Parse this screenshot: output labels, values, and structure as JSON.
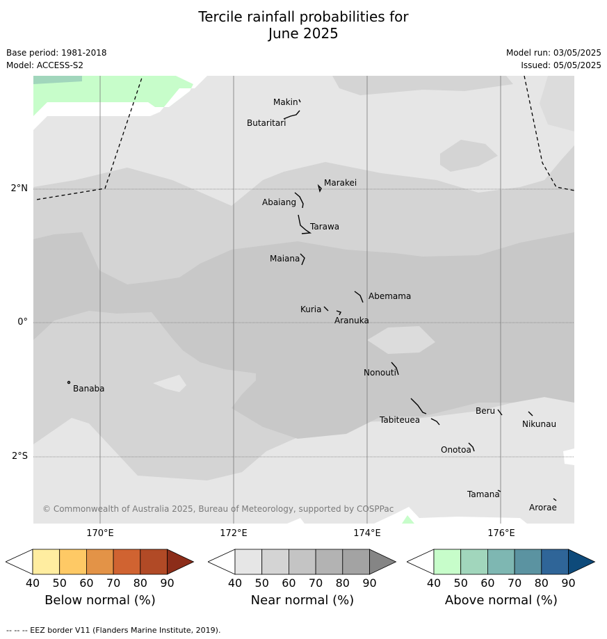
{
  "title_line1": "Tercile rainfall probabilities for",
  "title_line2": "June 2025",
  "meta_left": {
    "base_period": "Base period: 1981-2018",
    "model": "Model: ACCESS-S2"
  },
  "meta_right": {
    "model_run": "Model run: 03/05/2025",
    "issued": "Issued: 05/05/2025"
  },
  "lat_labels": [
    "2°N",
    "0°",
    "2°S"
  ],
  "lon_labels": [
    "170°E",
    "172°E",
    "174°E",
    "176°E"
  ],
  "places": [
    "Makin",
    "Butaritari",
    "Marakei",
    "Abaiang",
    "Tarawa",
    "Maiana",
    "Abemama",
    "Kuria",
    "Aranuka",
    "Nonouti",
    "Banaba",
    "Beru",
    "Tabiteuea",
    "Nikunau",
    "Onotoa",
    "Tamana",
    "Arorae"
  ],
  "copyright": "© Commonwealth of Australia 2025, Bureau of Meteorology, supported by COSPPac",
  "colorbars": [
    {
      "label": "Below normal (%)",
      "ticks": [
        "40",
        "50",
        "60",
        "70",
        "80",
        "90"
      ],
      "colors": [
        "#ffffff",
        "#ffeda0",
        "#fec965",
        "#e39347",
        "#d06331",
        "#b14a26",
        "#8c2d19"
      ]
    },
    {
      "label": "Near normal (%)",
      "ticks": [
        "40",
        "50",
        "60",
        "70",
        "80",
        "90"
      ],
      "colors": [
        "#ffffff",
        "#e6e6e6",
        "#d4d4d4",
        "#c4c4c4",
        "#b3b3b3",
        "#a3a3a3",
        "#858585"
      ]
    },
    {
      "label": "Above normal (%)",
      "ticks": [
        "40",
        "50",
        "60",
        "70",
        "80",
        "90"
      ],
      "colors": [
        "#ffffff",
        "#c7fdca",
        "#a1d6bc",
        "#7eb7b2",
        "#5b93a1",
        "#2f6598",
        "#0e4a7a"
      ]
    }
  ],
  "footnote": "--  --  -- EEZ border V11 (Flanders Marine Institute, 2019)."
}
